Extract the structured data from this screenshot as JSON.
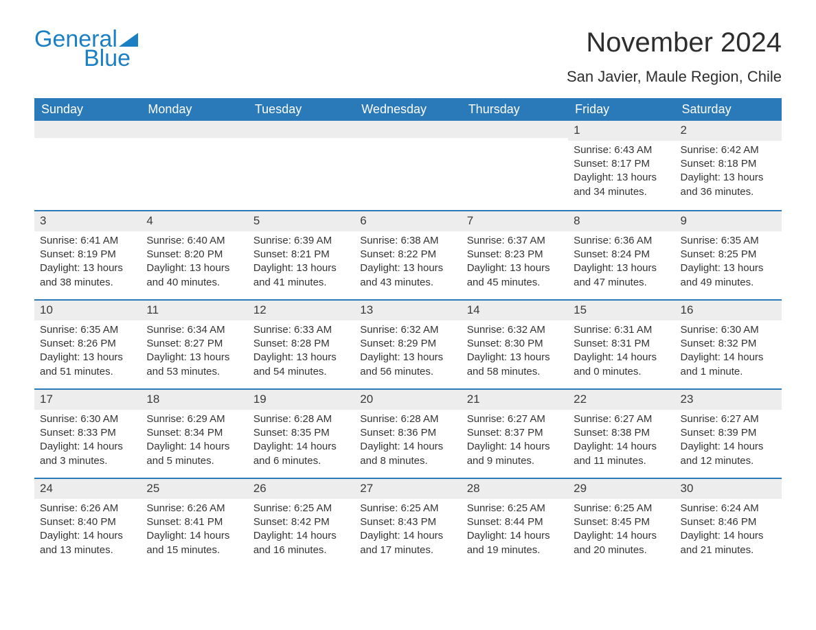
{
  "logo": {
    "text_general": "General",
    "text_blue": "Blue",
    "flag_color": "#1a7fc3"
  },
  "header": {
    "title": "November 2024",
    "subtitle": "San Javier, Maule Region, Chile"
  },
  "colors": {
    "header_bg": "#2a79b8",
    "header_text": "#ffffff",
    "day_number_bg": "#ededed",
    "row_border": "#2a79b8",
    "text": "#333333",
    "background": "#ffffff",
    "logo_color": "#1a7fc3"
  },
  "typography": {
    "title_fontsize": 40,
    "subtitle_fontsize": 22,
    "weekday_fontsize": 18,
    "daynum_fontsize": 17,
    "body_fontsize": 15
  },
  "weekdays": [
    "Sunday",
    "Monday",
    "Tuesday",
    "Wednesday",
    "Thursday",
    "Friday",
    "Saturday"
  ],
  "weeks": [
    [
      {
        "day": "",
        "sunrise": "",
        "sunset": "",
        "daylight": ""
      },
      {
        "day": "",
        "sunrise": "",
        "sunset": "",
        "daylight": ""
      },
      {
        "day": "",
        "sunrise": "",
        "sunset": "",
        "daylight": ""
      },
      {
        "day": "",
        "sunrise": "",
        "sunset": "",
        "daylight": ""
      },
      {
        "day": "",
        "sunrise": "",
        "sunset": "",
        "daylight": ""
      },
      {
        "day": "1",
        "sunrise": "Sunrise: 6:43 AM",
        "sunset": "Sunset: 8:17 PM",
        "daylight": "Daylight: 13 hours and 34 minutes."
      },
      {
        "day": "2",
        "sunrise": "Sunrise: 6:42 AM",
        "sunset": "Sunset: 8:18 PM",
        "daylight": "Daylight: 13 hours and 36 minutes."
      }
    ],
    [
      {
        "day": "3",
        "sunrise": "Sunrise: 6:41 AM",
        "sunset": "Sunset: 8:19 PM",
        "daylight": "Daylight: 13 hours and 38 minutes."
      },
      {
        "day": "4",
        "sunrise": "Sunrise: 6:40 AM",
        "sunset": "Sunset: 8:20 PM",
        "daylight": "Daylight: 13 hours and 40 minutes."
      },
      {
        "day": "5",
        "sunrise": "Sunrise: 6:39 AM",
        "sunset": "Sunset: 8:21 PM",
        "daylight": "Daylight: 13 hours and 41 minutes."
      },
      {
        "day": "6",
        "sunrise": "Sunrise: 6:38 AM",
        "sunset": "Sunset: 8:22 PM",
        "daylight": "Daylight: 13 hours and 43 minutes."
      },
      {
        "day": "7",
        "sunrise": "Sunrise: 6:37 AM",
        "sunset": "Sunset: 8:23 PM",
        "daylight": "Daylight: 13 hours and 45 minutes."
      },
      {
        "day": "8",
        "sunrise": "Sunrise: 6:36 AM",
        "sunset": "Sunset: 8:24 PM",
        "daylight": "Daylight: 13 hours and 47 minutes."
      },
      {
        "day": "9",
        "sunrise": "Sunrise: 6:35 AM",
        "sunset": "Sunset: 8:25 PM",
        "daylight": "Daylight: 13 hours and 49 minutes."
      }
    ],
    [
      {
        "day": "10",
        "sunrise": "Sunrise: 6:35 AM",
        "sunset": "Sunset: 8:26 PM",
        "daylight": "Daylight: 13 hours and 51 minutes."
      },
      {
        "day": "11",
        "sunrise": "Sunrise: 6:34 AM",
        "sunset": "Sunset: 8:27 PM",
        "daylight": "Daylight: 13 hours and 53 minutes."
      },
      {
        "day": "12",
        "sunrise": "Sunrise: 6:33 AM",
        "sunset": "Sunset: 8:28 PM",
        "daylight": "Daylight: 13 hours and 54 minutes."
      },
      {
        "day": "13",
        "sunrise": "Sunrise: 6:32 AM",
        "sunset": "Sunset: 8:29 PM",
        "daylight": "Daylight: 13 hours and 56 minutes."
      },
      {
        "day": "14",
        "sunrise": "Sunrise: 6:32 AM",
        "sunset": "Sunset: 8:30 PM",
        "daylight": "Daylight: 13 hours and 58 minutes."
      },
      {
        "day": "15",
        "sunrise": "Sunrise: 6:31 AM",
        "sunset": "Sunset: 8:31 PM",
        "daylight": "Daylight: 14 hours and 0 minutes."
      },
      {
        "day": "16",
        "sunrise": "Sunrise: 6:30 AM",
        "sunset": "Sunset: 8:32 PM",
        "daylight": "Daylight: 14 hours and 1 minute."
      }
    ],
    [
      {
        "day": "17",
        "sunrise": "Sunrise: 6:30 AM",
        "sunset": "Sunset: 8:33 PM",
        "daylight": "Daylight: 14 hours and 3 minutes."
      },
      {
        "day": "18",
        "sunrise": "Sunrise: 6:29 AM",
        "sunset": "Sunset: 8:34 PM",
        "daylight": "Daylight: 14 hours and 5 minutes."
      },
      {
        "day": "19",
        "sunrise": "Sunrise: 6:28 AM",
        "sunset": "Sunset: 8:35 PM",
        "daylight": "Daylight: 14 hours and 6 minutes."
      },
      {
        "day": "20",
        "sunrise": "Sunrise: 6:28 AM",
        "sunset": "Sunset: 8:36 PM",
        "daylight": "Daylight: 14 hours and 8 minutes."
      },
      {
        "day": "21",
        "sunrise": "Sunrise: 6:27 AM",
        "sunset": "Sunset: 8:37 PM",
        "daylight": "Daylight: 14 hours and 9 minutes."
      },
      {
        "day": "22",
        "sunrise": "Sunrise: 6:27 AM",
        "sunset": "Sunset: 8:38 PM",
        "daylight": "Daylight: 14 hours and 11 minutes."
      },
      {
        "day": "23",
        "sunrise": "Sunrise: 6:27 AM",
        "sunset": "Sunset: 8:39 PM",
        "daylight": "Daylight: 14 hours and 12 minutes."
      }
    ],
    [
      {
        "day": "24",
        "sunrise": "Sunrise: 6:26 AM",
        "sunset": "Sunset: 8:40 PM",
        "daylight": "Daylight: 14 hours and 13 minutes."
      },
      {
        "day": "25",
        "sunrise": "Sunrise: 6:26 AM",
        "sunset": "Sunset: 8:41 PM",
        "daylight": "Daylight: 14 hours and 15 minutes."
      },
      {
        "day": "26",
        "sunrise": "Sunrise: 6:25 AM",
        "sunset": "Sunset: 8:42 PM",
        "daylight": "Daylight: 14 hours and 16 minutes."
      },
      {
        "day": "27",
        "sunrise": "Sunrise: 6:25 AM",
        "sunset": "Sunset: 8:43 PM",
        "daylight": "Daylight: 14 hours and 17 minutes."
      },
      {
        "day": "28",
        "sunrise": "Sunrise: 6:25 AM",
        "sunset": "Sunset: 8:44 PM",
        "daylight": "Daylight: 14 hours and 19 minutes."
      },
      {
        "day": "29",
        "sunrise": "Sunrise: 6:25 AM",
        "sunset": "Sunset: 8:45 PM",
        "daylight": "Daylight: 14 hours and 20 minutes."
      },
      {
        "day": "30",
        "sunrise": "Sunrise: 6:24 AM",
        "sunset": "Sunset: 8:46 PM",
        "daylight": "Daylight: 14 hours and 21 minutes."
      }
    ]
  ]
}
